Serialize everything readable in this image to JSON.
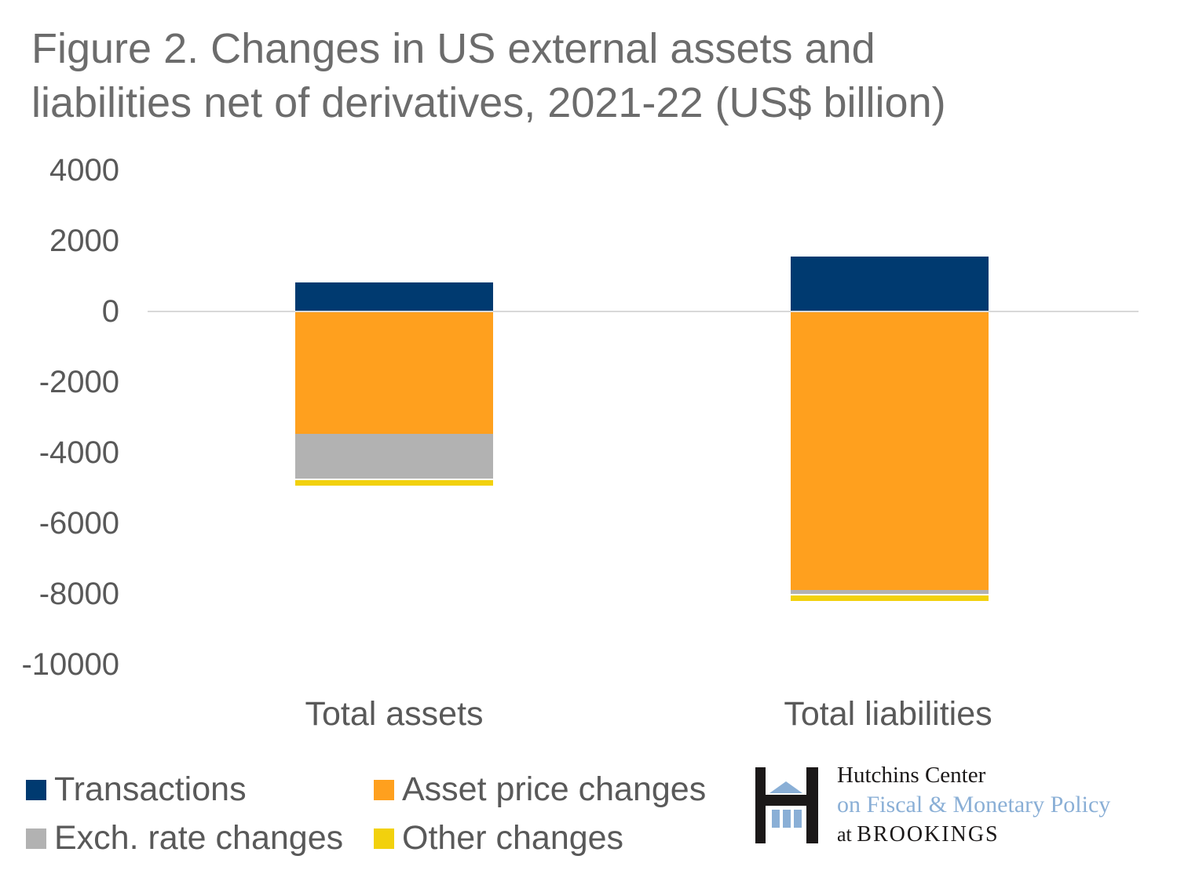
{
  "title": "Figure 2. Changes in US external assets and liabilities net of derivatives, 2021-22 (US$ billion)",
  "chart_data": {
    "type": "bar",
    "stacked": true,
    "title": "Figure 2. Changes in US external assets and liabilities net of derivatives, 2021-22 (US$ billion)",
    "units": "US$ billion",
    "categories": [
      "Total assets",
      "Total liabilities"
    ],
    "series": [
      {
        "name": "Transactions",
        "color": "#003A70",
        "values": [
          820,
          1550
        ]
      },
      {
        "name": "Asset price changes",
        "color": "#FFA01E",
        "values": [
          -3460,
          -7880
        ]
      },
      {
        "name": "Exch. rate changes",
        "color": "#B2B2B2",
        "values": [
          -1280,
          -120
        ]
      },
      {
        "name": "Other changes",
        "color": "#F2D10D",
        "values": [
          -150,
          -150
        ]
      }
    ],
    "ylim": [
      -10000,
      4000
    ],
    "yticks": [
      4000,
      2000,
      0,
      -2000,
      -4000,
      -6000,
      -8000,
      -10000
    ],
    "grid": "zero-line-only",
    "gridline_color": "#D9D9D9",
    "legend_position": "bottom-left"
  },
  "text_colors": {
    "title": "#6C6C6C",
    "axis_labels": "#595959"
  },
  "branding": {
    "line1": "Hutchins Center",
    "line2": "on Fiscal & Monetary Policy",
    "line3_prefix": "at ",
    "line3_name": "BROOKINGS",
    "colors": {
      "black": "#1B1818",
      "light_blue": "#8AAFD6"
    }
  }
}
